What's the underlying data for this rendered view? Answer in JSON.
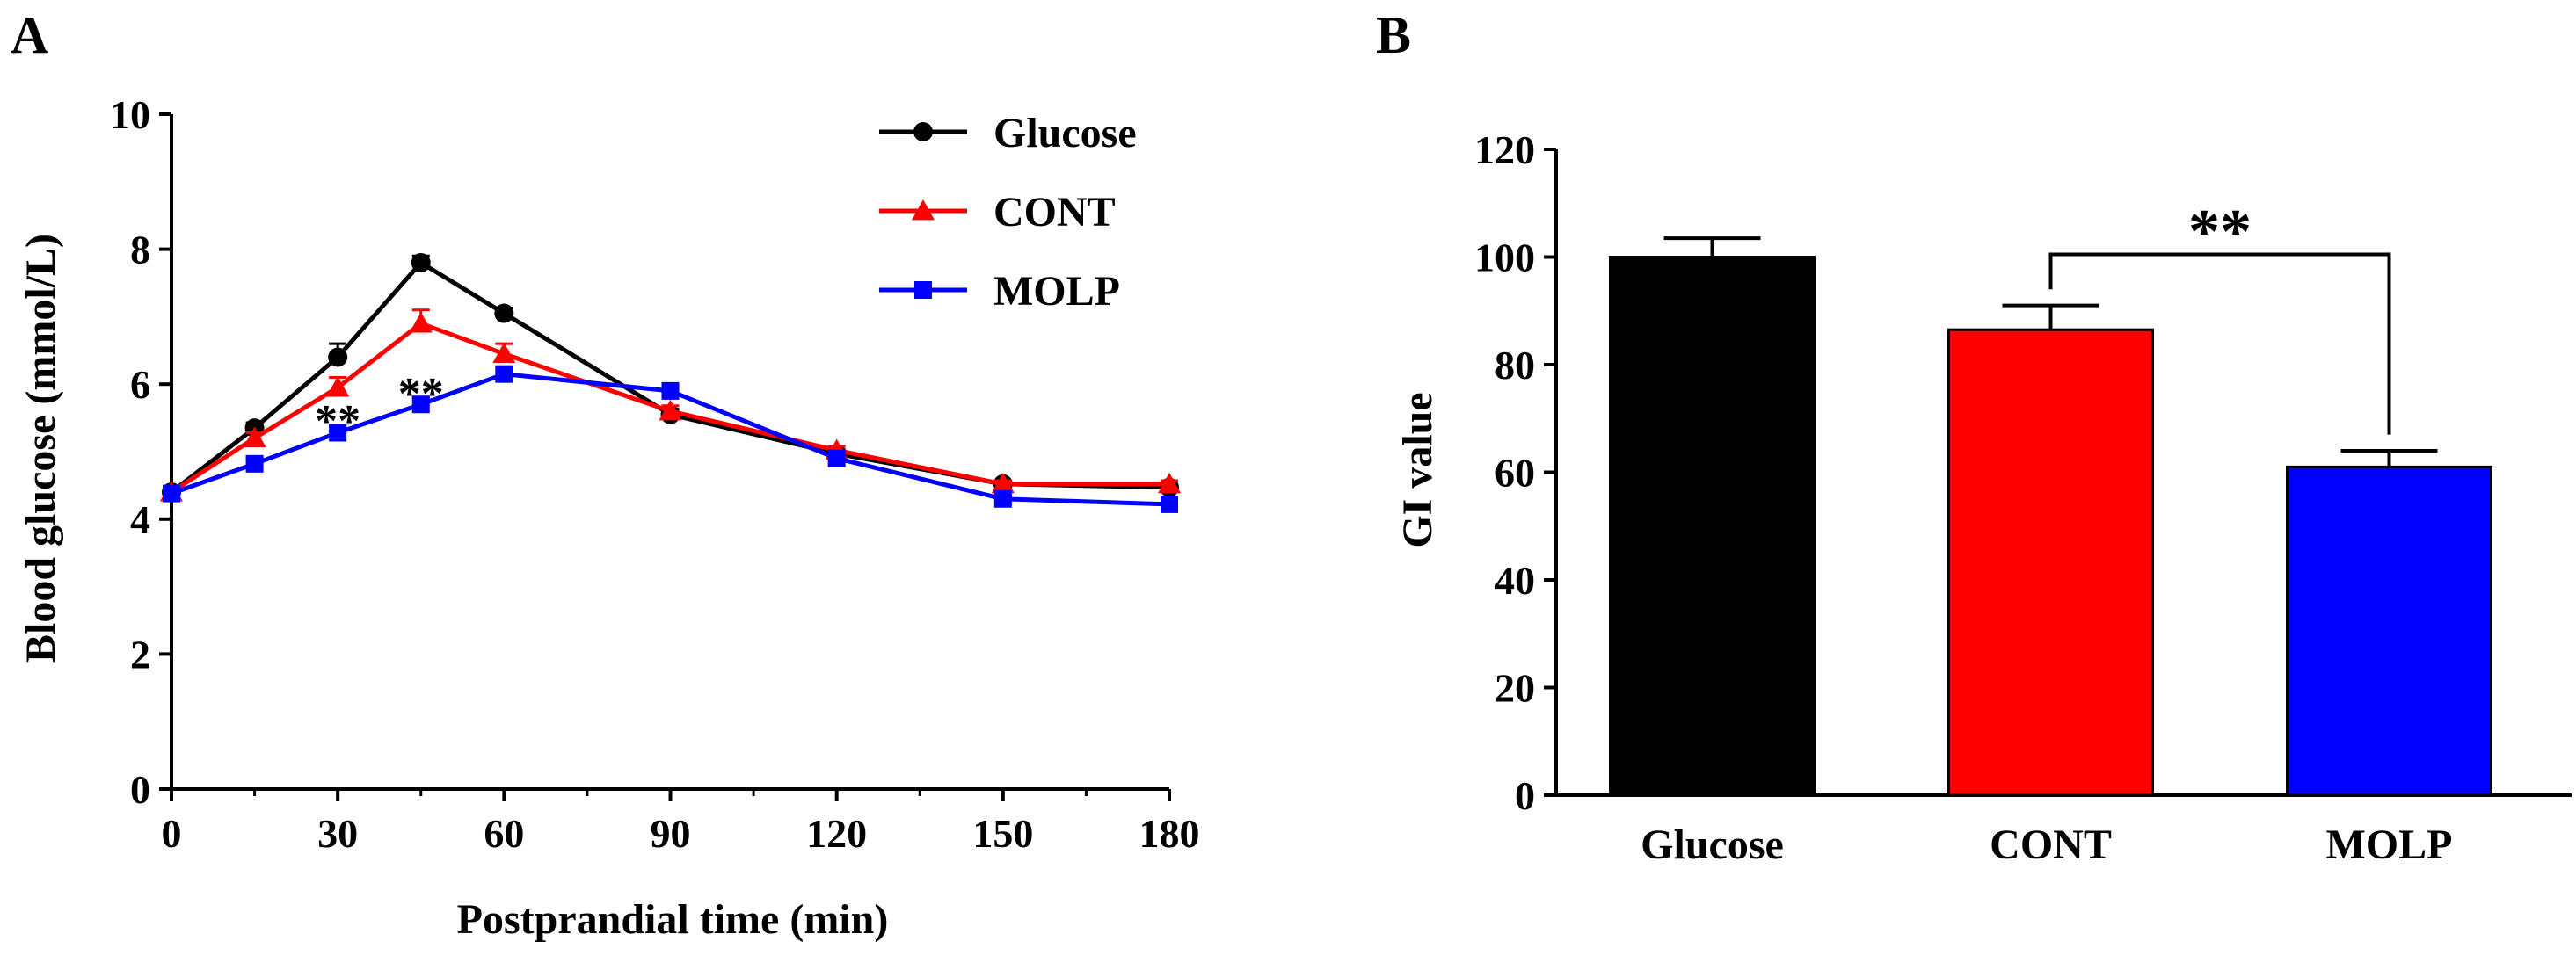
{
  "chart_data": [
    {
      "panel_label": "A",
      "type": "line",
      "xlabel": "Postprandial time (min)",
      "ylabel": "Blood glucose (mmol/L)",
      "xlim": [
        0,
        180
      ],
      "ylim": [
        0,
        10
      ],
      "xticks": [
        "0",
        "30",
        "60",
        "90",
        "120",
        "150",
        "180"
      ],
      "yticks": [
        "0",
        "2",
        "4",
        "6",
        "8",
        "10"
      ],
      "x": [
        0,
        15,
        30,
        45,
        60,
        90,
        120,
        150,
        180
      ],
      "series": [
        {
          "name": "Glucose",
          "color": "#000000",
          "marker": "circle",
          "values": [
            4.4,
            5.35,
            6.4,
            7.8,
            7.05,
            5.55,
            4.97,
            4.52,
            4.47
          ],
          "errors": [
            0.05,
            0.08,
            0.2,
            0.1,
            0.08,
            0.08,
            0.06,
            0.05,
            0.05
          ]
        },
        {
          "name": "CONT",
          "color": "#ff0000",
          "marker": "triangle",
          "values": [
            4.4,
            5.2,
            5.95,
            6.9,
            6.45,
            5.6,
            5.02,
            4.52,
            4.52
          ],
          "errors": [
            0.05,
            0.08,
            0.15,
            0.2,
            0.15,
            0.08,
            0.06,
            0.05,
            0.05
          ]
        },
        {
          "name": "MOLP",
          "color": "#0000ff",
          "marker": "square",
          "values": [
            4.38,
            4.82,
            5.28,
            5.7,
            6.15,
            5.9,
            4.9,
            4.3,
            4.22
          ],
          "errors": [
            0.05,
            0.08,
            0.1,
            0.1,
            0.1,
            0.08,
            0.06,
            0.05,
            0.05
          ]
        }
      ],
      "annotations": [
        {
          "text": "**",
          "x": 30,
          "y": 5.55
        },
        {
          "text": "**",
          "x": 45,
          "y": 5.95
        }
      ],
      "legend_position": "top-right"
    },
    {
      "panel_label": "B",
      "type": "bar",
      "xlabel": "",
      "ylabel": "GI value",
      "ylim": [
        0,
        120
      ],
      "yticks": [
        "0",
        "20",
        "40",
        "60",
        "80",
        "100",
        "120"
      ],
      "categories": [
        "Glucose",
        "CONT",
        "MOLP"
      ],
      "values": [
        100,
        86.5,
        61
      ],
      "errors": [
        3.5,
        4.5,
        3
      ],
      "colors": [
        "#000000",
        "#ff0000",
        "#0000ff"
      ],
      "significance": {
        "from": "CONT",
        "to": "MOLP",
        "text": "**"
      }
    }
  ]
}
